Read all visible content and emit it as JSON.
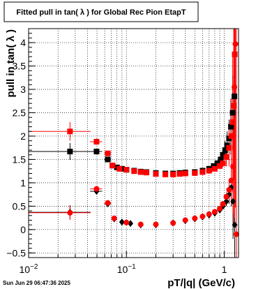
{
  "chart_data": {
    "type": "scatter",
    "title": "Fitted pull in tan( λ ) for Global Rec Pion EtapT",
    "xlabel": "pT/|q| (GeV/c)",
    "ylabel": "pull in tan( λ )",
    "x_scale": "log",
    "xlim": [
      0.01,
      1.4
    ],
    "ylim": [
      -0.6,
      4.3
    ],
    "grid": true,
    "x_tick_labels": [
      {
        "value": 0.01,
        "base": "10",
        "exp": "−2"
      },
      {
        "value": 0.1,
        "base": "10",
        "exp": "−1"
      },
      {
        "value": 1,
        "base": "1",
        "exp": ""
      }
    ],
    "y_ticks": [
      -0.5,
      0,
      0.5,
      1,
      1.5,
      2,
      2.5,
      3,
      3.5,
      4
    ],
    "y_tick_labels": [
      "−0.5",
      "0",
      "0.5",
      "1",
      "1.5",
      "2",
      "2.5",
      "3",
      "3.5",
      "4"
    ],
    "colors": {
      "black_series": "#000000",
      "red_series": "#ff0000"
    },
    "footer": "Sun Jun 29 06:47:36 2025",
    "series": [
      {
        "marker": "square",
        "color": "#000000",
        "x": [
          0.0265,
          0.0495,
          0.0645,
          0.072,
          0.08,
          0.09,
          0.1,
          0.12,
          0.14,
          0.16,
          0.2,
          0.25,
          0.3,
          0.35,
          0.4,
          0.5,
          0.6,
          0.7,
          0.78,
          0.85,
          0.92,
          0.97,
          1.02,
          1.07,
          1.12,
          1.17,
          1.22,
          1.27
        ],
        "y": [
          1.67,
          1.67,
          1.5,
          1.37,
          1.33,
          1.3,
          1.28,
          1.26,
          1.24,
          1.23,
          1.21,
          1.2,
          1.2,
          1.21,
          1.22,
          1.23,
          1.26,
          1.3,
          1.36,
          1.42,
          1.5,
          1.6,
          1.7,
          1.8,
          1.95,
          2.2,
          2.5,
          2.85
        ],
        "x_err": [
          0.0165,
          0.007,
          0.005,
          0,
          0,
          0,
          0,
          0,
          0,
          0,
          0,
          0,
          0,
          0,
          0,
          0,
          0,
          0,
          0,
          0,
          0,
          0,
          0,
          0,
          0,
          0,
          0,
          0
        ],
        "y_err": [
          0.18,
          0.06,
          0.04,
          0,
          0,
          0,
          0,
          0,
          0,
          0,
          0,
          0,
          0,
          0,
          0,
          0,
          0,
          0,
          0,
          0,
          0,
          0.1,
          0.2,
          0.3,
          0.4,
          0.6,
          0.8,
          1.2
        ]
      },
      {
        "marker": "diamond",
        "color": "#000000",
        "x": [
          0.0265,
          0.0495,
          0.0645,
          0.075,
          0.09,
          0.11,
          0.14,
          0.2,
          0.3,
          0.4,
          0.5,
          0.6,
          0.7,
          0.8,
          0.9,
          0.97,
          1.05,
          1.12,
          1.18,
          1.23,
          1.28
        ],
        "y": [
          0.37,
          0.82,
          0.55,
          0.23,
          0.16,
          0.13,
          0.1,
          0.1,
          0.14,
          0.19,
          0.23,
          0.27,
          0.31,
          0.35,
          0.42,
          0.5,
          0.6,
          0.75,
          0.9,
          0.6,
          0.1
        ],
        "x_err": [
          0.0165,
          0.007,
          0.005,
          0,
          0,
          0,
          0,
          0,
          0,
          0,
          0,
          0,
          0,
          0,
          0,
          0,
          0,
          0,
          0,
          0,
          0
        ],
        "y_err": [
          0.15,
          0.05,
          0.03,
          0,
          0,
          0,
          0,
          0,
          0,
          0,
          0,
          0,
          0,
          0,
          0,
          0,
          0.1,
          0.2,
          0.4,
          0.8,
          1.5
        ]
      },
      {
        "marker": "square",
        "color": "#ff0000",
        "x": [
          0.0265,
          0.0495,
          0.0645,
          0.072,
          0.085,
          0.1,
          0.12,
          0.14,
          0.16,
          0.2,
          0.25,
          0.3,
          0.35,
          0.4,
          0.5,
          0.6,
          0.7,
          0.8,
          0.9,
          0.97,
          1.05,
          1.12,
          1.18,
          1.22,
          1.25,
          1.28
        ],
        "y": [
          2.1,
          1.88,
          1.63,
          1.37,
          1.3,
          1.28,
          1.25,
          1.23,
          1.22,
          1.19,
          1.18,
          1.18,
          1.19,
          1.2,
          1.21,
          1.23,
          1.26,
          1.3,
          1.36,
          1.42,
          1.55,
          1.75,
          2.0,
          2.3,
          2.65,
          3.75
        ],
        "x_err": [
          0.0165,
          0.007,
          0.005,
          0,
          0,
          0,
          0,
          0,
          0,
          0,
          0,
          0,
          0,
          0,
          0,
          0,
          0,
          0,
          0,
          0,
          0,
          0,
          0,
          0,
          0,
          0
        ],
        "y_err": [
          0.2,
          0.07,
          0.05,
          0,
          0,
          0,
          0,
          0,
          0,
          0,
          0,
          0,
          0,
          0,
          0,
          0,
          0,
          0,
          0,
          0.08,
          0.2,
          0.4,
          0.8,
          1.5,
          2.5,
          3.5
        ]
      },
      {
        "marker": "circle",
        "color": "#ff0000",
        "x": [
          0.0265,
          0.0495,
          0.0645,
          0.075,
          0.1,
          0.14,
          0.2,
          0.3,
          0.4,
          0.5,
          0.6,
          0.7,
          0.8,
          0.9,
          0.97,
          1.05,
          1.12,
          1.18,
          1.23,
          1.27,
          1.3,
          1.33
        ],
        "y": [
          0.36,
          0.87,
          0.57,
          0.24,
          0.15,
          0.11,
          0.11,
          0.14,
          0.2,
          0.24,
          0.28,
          0.33,
          0.38,
          0.45,
          0.55,
          0.7,
          0.85,
          1.05,
          1.35,
          3.05,
          3.97,
          -0.1
        ],
        "x_err": [
          0.0165,
          0.007,
          0.005,
          0,
          0,
          0,
          0,
          0,
          0,
          0,
          0,
          0,
          0,
          0,
          0,
          0,
          0,
          0,
          0,
          0,
          0,
          0
        ],
        "y_err": [
          0.15,
          0.05,
          0.03,
          0,
          0,
          0,
          0,
          0,
          0,
          0,
          0,
          0,
          0,
          0,
          0,
          0.1,
          0.2,
          0.5,
          1.0,
          2.0,
          3.5,
          4.5
        ]
      }
    ]
  }
}
